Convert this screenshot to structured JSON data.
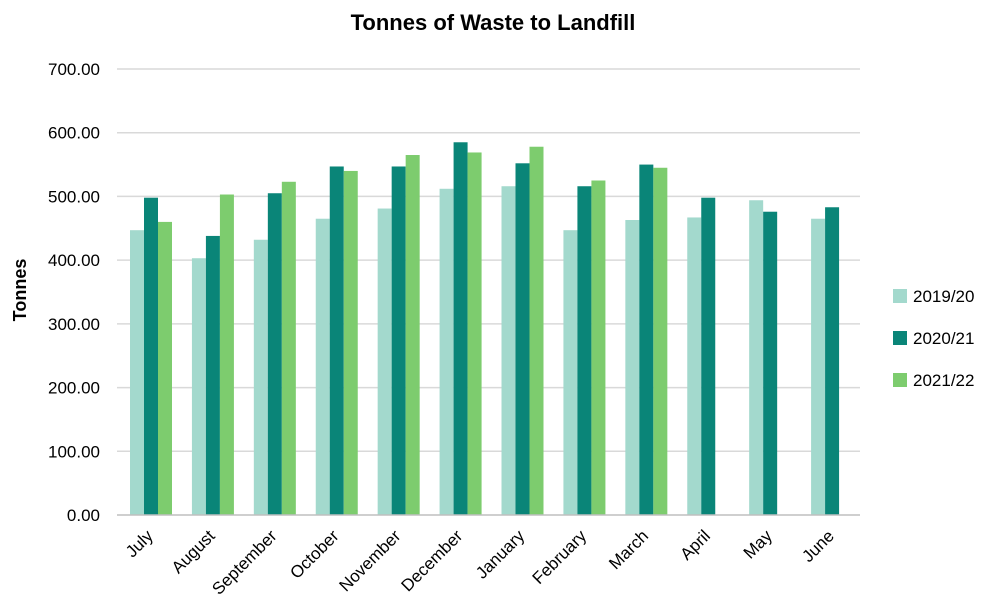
{
  "chart_data": {
    "type": "bar",
    "title": "Tonnes of Waste to Landfill",
    "xlabel": "",
    "ylabel": "Tonnes",
    "ylim": [
      0,
      700
    ],
    "yticks": [
      0,
      100,
      200,
      300,
      400,
      500,
      600,
      700
    ],
    "ytick_labels": [
      "0.00",
      "100.00",
      "200.00",
      "300.00",
      "400.00",
      "500.00",
      "600.00",
      "700.00"
    ],
    "grid": true,
    "legend_position": "right",
    "categories": [
      "July",
      "August",
      "September",
      "October",
      "November",
      "December",
      "January",
      "February",
      "March",
      "April",
      "May",
      "June"
    ],
    "series": [
      {
        "name": "2019/20",
        "color": "#a3d9cd",
        "values": [
          447,
          403,
          432,
          465,
          481,
          512,
          516,
          447,
          463,
          467,
          494,
          465
        ]
      },
      {
        "name": "2020/21",
        "color": "#0a8578",
        "values": [
          498,
          438,
          505,
          547,
          547,
          585,
          552,
          516,
          550,
          498,
          476,
          483
        ]
      },
      {
        "name": "2021/22",
        "color": "#7dcc6e",
        "values": [
          460,
          503,
          523,
          540,
          565,
          569,
          578,
          525,
          545,
          null,
          null,
          null
        ]
      }
    ]
  }
}
